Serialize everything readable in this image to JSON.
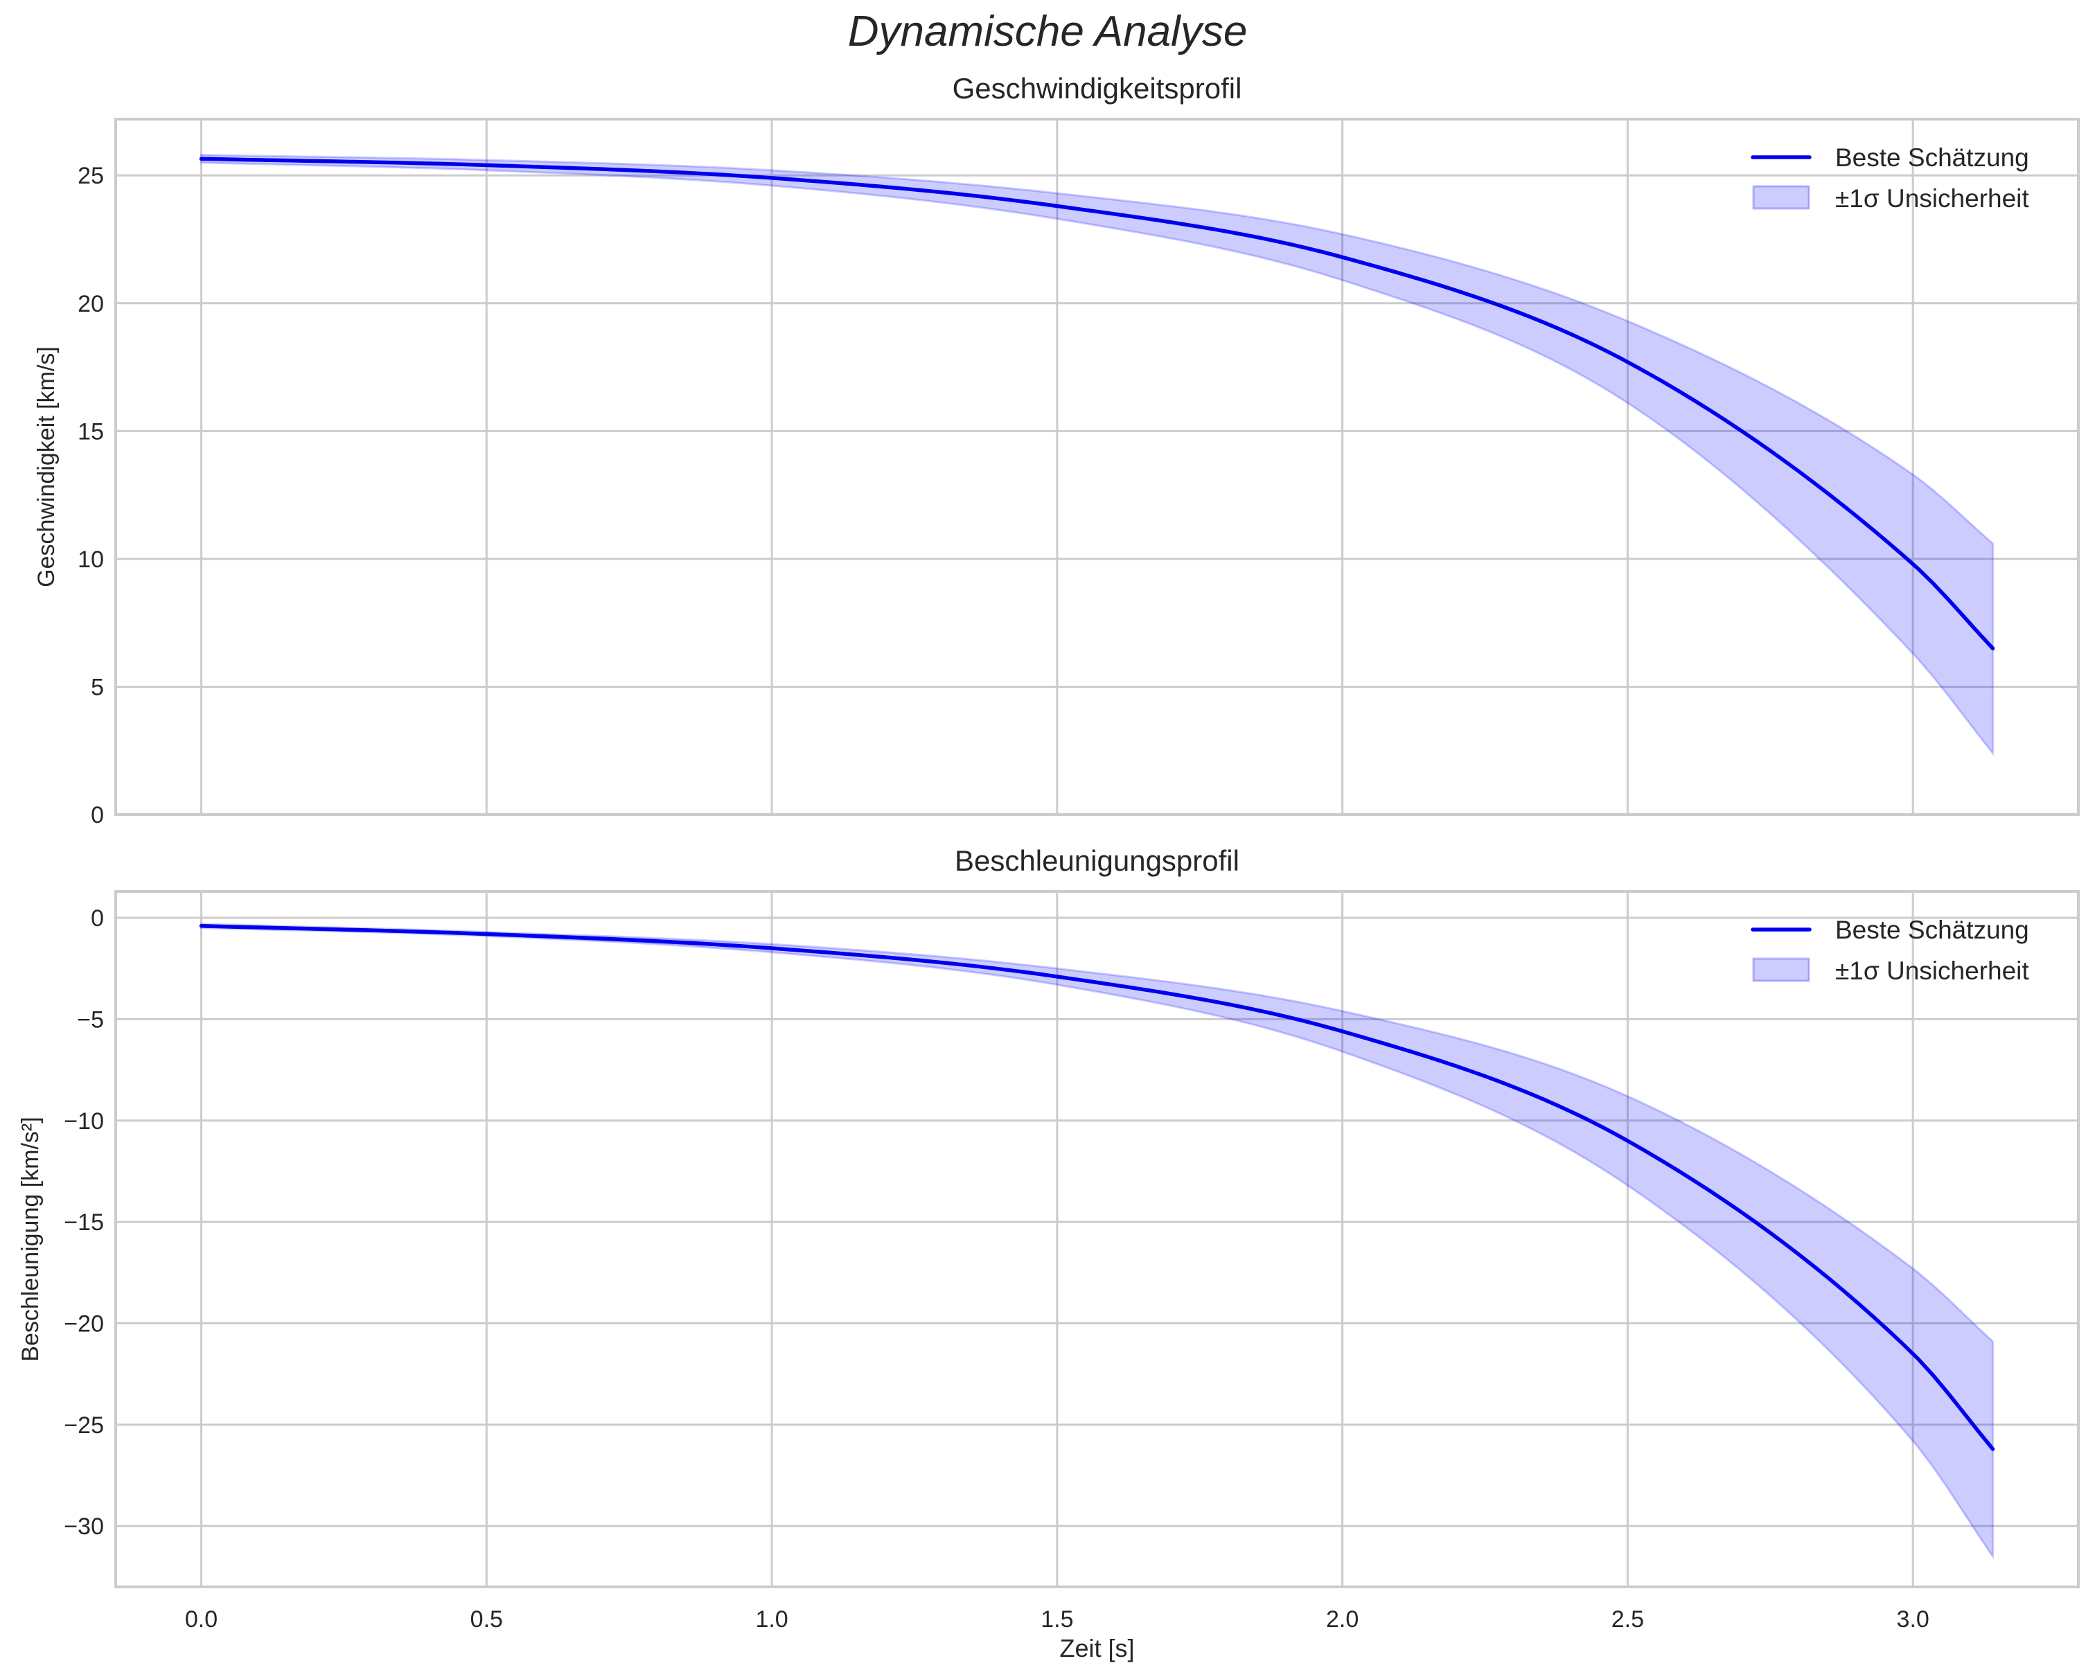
{
  "figure": {
    "title": "Dynamische Analyse",
    "xlabel": "Zeit [s]"
  },
  "chart_data": [
    {
      "type": "line",
      "title": "Geschwindigkeitsprofil",
      "xlabel": "",
      "ylabel": "Geschwindigkeit [km/s]",
      "xlim": [
        -0.15,
        3.29
      ],
      "ylim": [
        0,
        27.2
      ],
      "xticks": [
        "0.0",
        "0.5",
        "1.0",
        "1.5",
        "2.0",
        "2.5",
        "3.0"
      ],
      "yticks": [
        0,
        5,
        10,
        15,
        20,
        25
      ],
      "grid": true,
      "legend_position": "upper right",
      "x": [
        0,
        0.5,
        1.0,
        1.5,
        2.0,
        2.5,
        3.0,
        3.14
      ],
      "series": [
        {
          "name": "Beste Schätzung",
          "values": [
            25.65,
            25.4,
            24.9,
            23.8,
            21.8,
            17.7,
            9.8,
            6.5
          ],
          "color": "#0000ee"
        },
        {
          "name": "±1σ Unsicherheit",
          "type": "band",
          "lower": [
            25.5,
            25.2,
            24.6,
            23.3,
            20.9,
            16.1,
            6.3,
            2.4
          ],
          "upper": [
            25.8,
            25.6,
            25.2,
            24.3,
            22.7,
            19.3,
            13.3,
            10.6
          ],
          "color": "#0000ff",
          "alpha": 0.2
        }
      ]
    },
    {
      "type": "line",
      "title": "Beschleunigungsprofil",
      "xlabel": "Zeit [s]",
      "ylabel": "Beschleunigung [km/s²]",
      "xlim": [
        -0.15,
        3.29
      ],
      "ylim": [
        -33,
        1.3
      ],
      "xticks": [
        "0.0",
        "0.5",
        "1.0",
        "1.5",
        "2.0",
        "2.5",
        "3.0"
      ],
      "yticks": [
        0,
        -5,
        -10,
        -15,
        -20,
        -25,
        -30
      ],
      "ytick_labels": [
        "0",
        "−5",
        "−10",
        "−15",
        "−20",
        "−25",
        "−30"
      ],
      "grid": true,
      "legend_position": "upper right",
      "x": [
        0,
        0.5,
        1.0,
        1.5,
        2.0,
        2.5,
        3.0,
        3.14
      ],
      "series": [
        {
          "name": "Beste Schätzung",
          "values": [
            -0.4,
            -0.8,
            -1.5,
            -2.9,
            -5.6,
            -11.0,
            -21.5,
            -26.2
          ],
          "color": "#0000ee"
        },
        {
          "name": "±1σ Unsicherheit",
          "type": "band",
          "lower": [
            -0.5,
            -0.9,
            -1.7,
            -3.3,
            -6.6,
            -13.2,
            -25.8,
            -31.5
          ],
          "upper": [
            -0.3,
            -0.7,
            -1.3,
            -2.5,
            -4.6,
            -8.8,
            -17.3,
            -20.9
          ],
          "color": "#0000ff",
          "alpha": 0.2
        }
      ]
    }
  ]
}
